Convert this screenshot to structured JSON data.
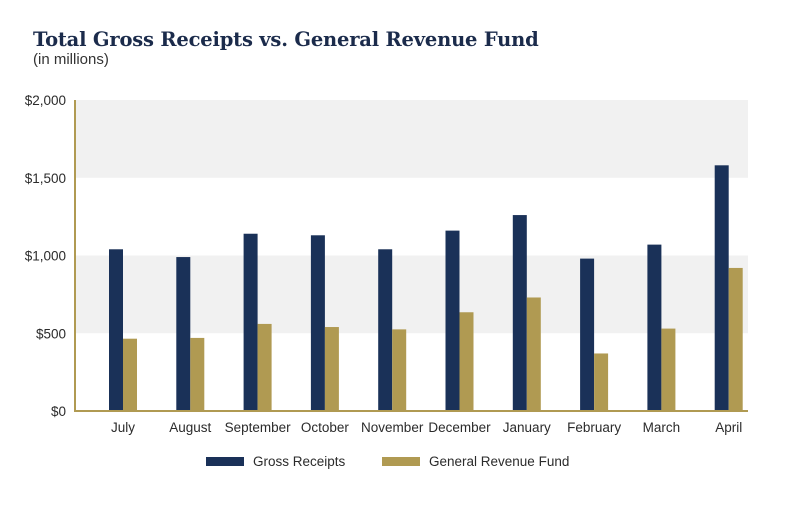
{
  "chart_data": {
    "type": "bar",
    "title": "Total Gross Receipts vs. General Revenue Fund",
    "subtitle": "(in millions)",
    "xlabel": "",
    "ylabel": "",
    "ylim": [
      0,
      2000
    ],
    "yticks": [
      0,
      500,
      1000,
      1500,
      2000
    ],
    "ytick_labels": [
      "$0",
      "$500",
      "$1,000",
      "$1,500",
      "$2,000"
    ],
    "grid": "alternating horizontal bands",
    "legend_position": "bottom-center",
    "categories": [
      "July",
      "August",
      "September",
      "October",
      "November",
      "December",
      "January",
      "February",
      "March",
      "April"
    ],
    "series": [
      {
        "name": "Gross Receipts",
        "color": "#1a3158",
        "values": [
          1040,
          990,
          1140,
          1130,
          1040,
          1160,
          1260,
          980,
          1070,
          1580
        ]
      },
      {
        "name": "General Revenue Fund",
        "color": "#b09a52",
        "values": [
          465,
          470,
          560,
          540,
          525,
          635,
          730,
          370,
          530,
          920
        ]
      }
    ]
  },
  "colors": {
    "axis": "#b09a52",
    "band": "#f1f1f1",
    "title": "#1b2b4b"
  }
}
